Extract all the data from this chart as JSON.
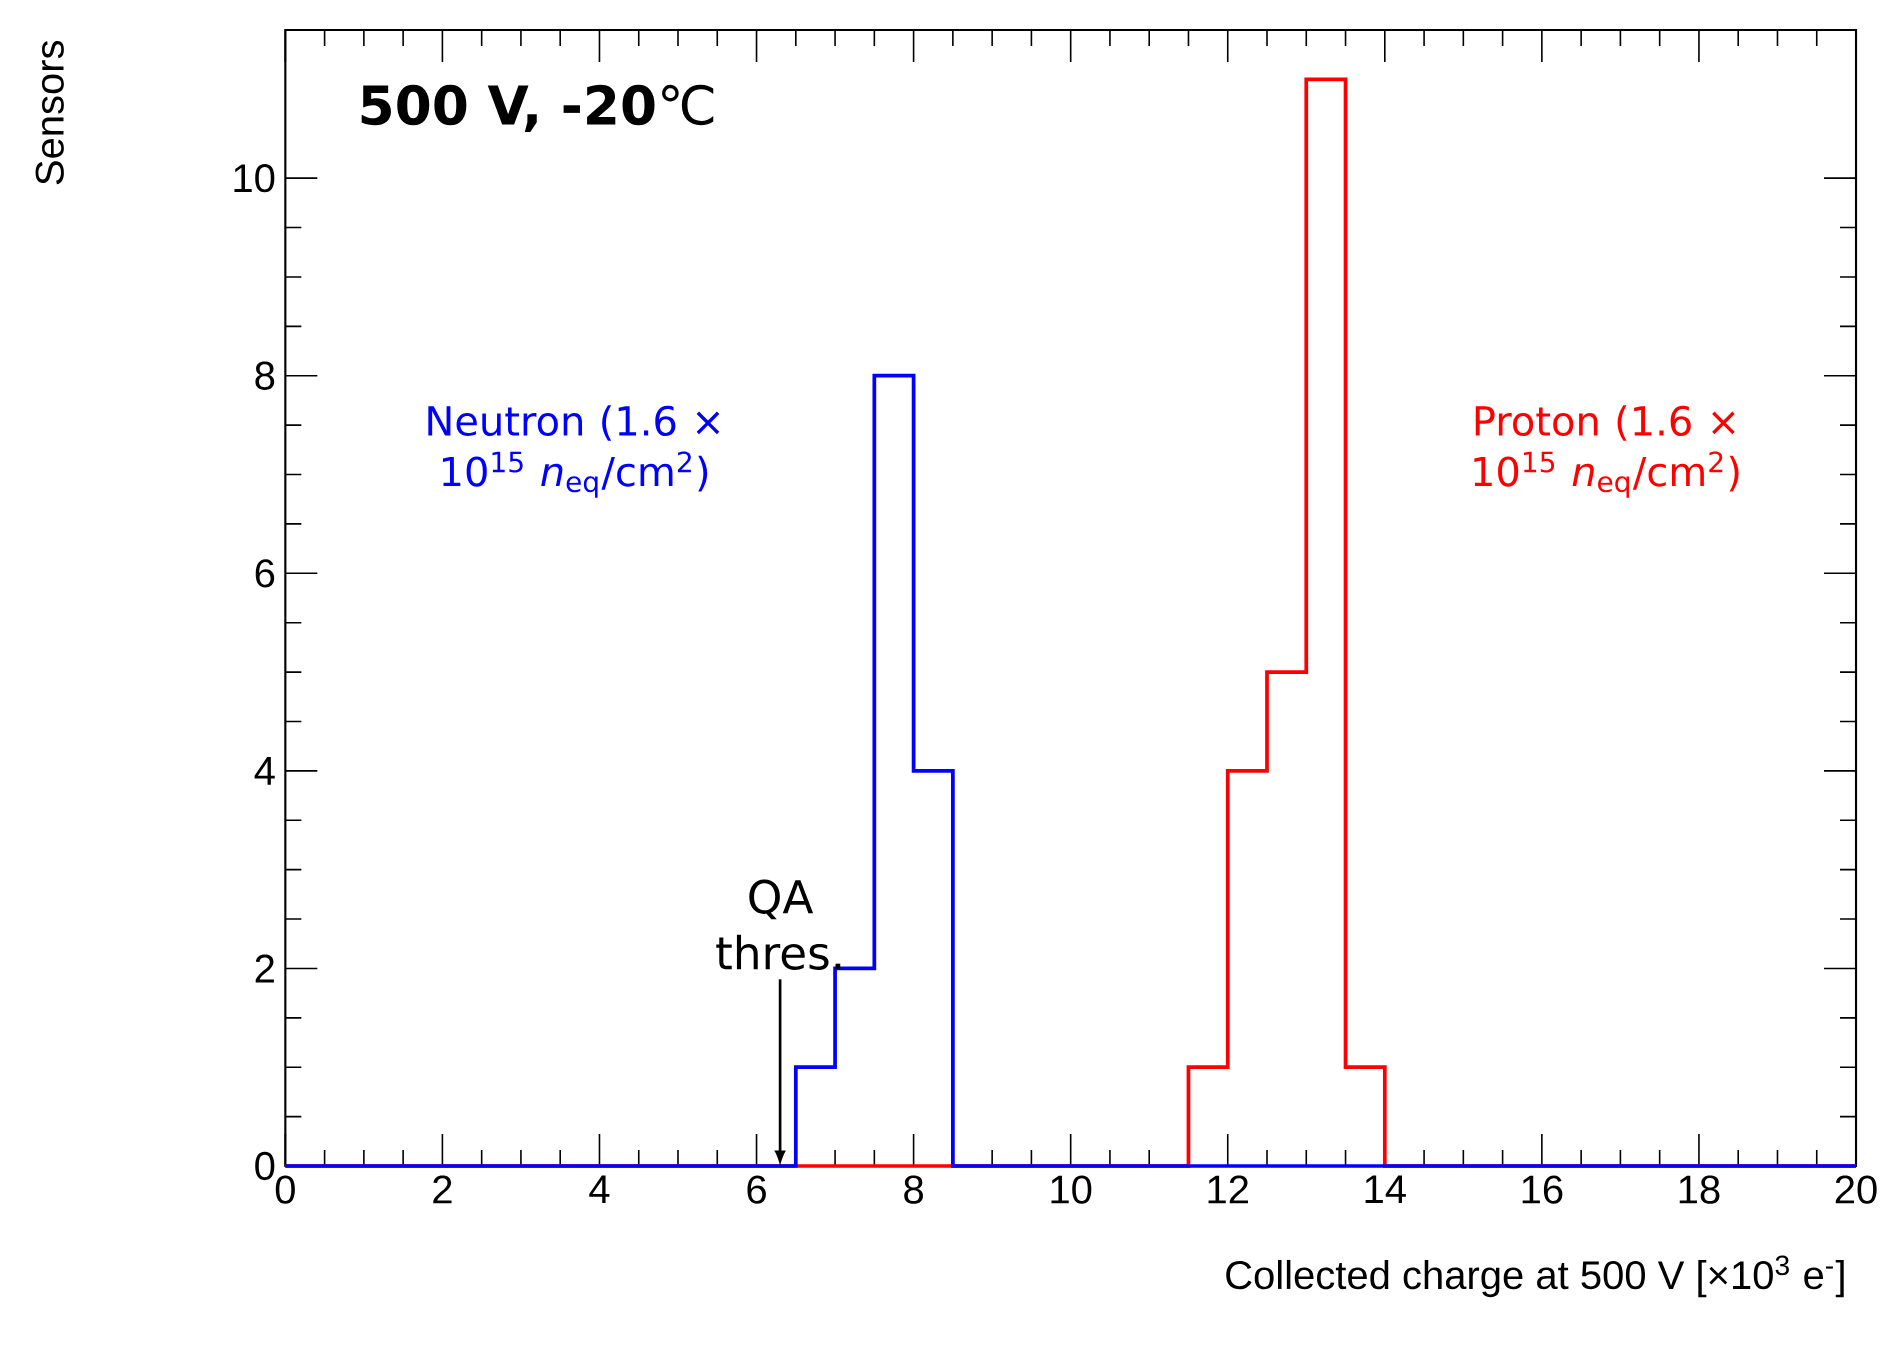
{
  "chart_data": {
    "type": "histogram",
    "xlabel": "Collected charge at 500 V [×10$^{3}$ e$^{-}$]",
    "ylabel": "Sensors",
    "bins": [
      0,
      0.5,
      1,
      1.5,
      2,
      2.5,
      3,
      3.5,
      4,
      4.5,
      5,
      5.5,
      6,
      6.5,
      7,
      7.5,
      8,
      8.5,
      9,
      9.5,
      10,
      10.5,
      11,
      11.5,
      12,
      12.5,
      13,
      13.5,
      14,
      14.5,
      15,
      15.5,
      16,
      16.5,
      17,
      17.5,
      18,
      18.5,
      19,
      19.5,
      20
    ],
    "series": [
      {
        "name": "Neutron (1.6 × 10$^{15}$ *n*$_{eq}$/cm$^{2}$)",
        "color": "#0000ff",
        "values": [
          0,
          0,
          0,
          0,
          0,
          0,
          0,
          0,
          0,
          0,
          0,
          0,
          0,
          1,
          2,
          8,
          4,
          0,
          0,
          0,
          0,
          0,
          0,
          0,
          0,
          0,
          0,
          0,
          0,
          0,
          0,
          0,
          0,
          0,
          0,
          0,
          0,
          0,
          0,
          0
        ]
      },
      {
        "name": "Proton (1.6 × 10$^{15}$ *n*$_{eq}$/cm$^{2}$)",
        "color": "#ff0000",
        "values": [
          0,
          0,
          0,
          0,
          0,
          0,
          0,
          0,
          0,
          0,
          0,
          0,
          0,
          0,
          0,
          0,
          0,
          0,
          0,
          0,
          0,
          0,
          0,
          1,
          4,
          5,
          11,
          1,
          0,
          0,
          0,
          0,
          0,
          0,
          0,
          0,
          0,
          0,
          0,
          0
        ]
      }
    ],
    "xlim": [
      0,
      20
    ],
    "ylim": [
      0,
      11.5
    ],
    "xticks": [
      0,
      2,
      4,
      6,
      8,
      10,
      12,
      14,
      16,
      18,
      20
    ],
    "yticks": [
      0,
      2,
      4,
      6,
      8,
      10
    ],
    "annotations": [
      "**500 V, -20**℃",
      {
        "text": "QA thres.",
        "x": 6.3,
        "y": 0
      }
    ]
  }
}
